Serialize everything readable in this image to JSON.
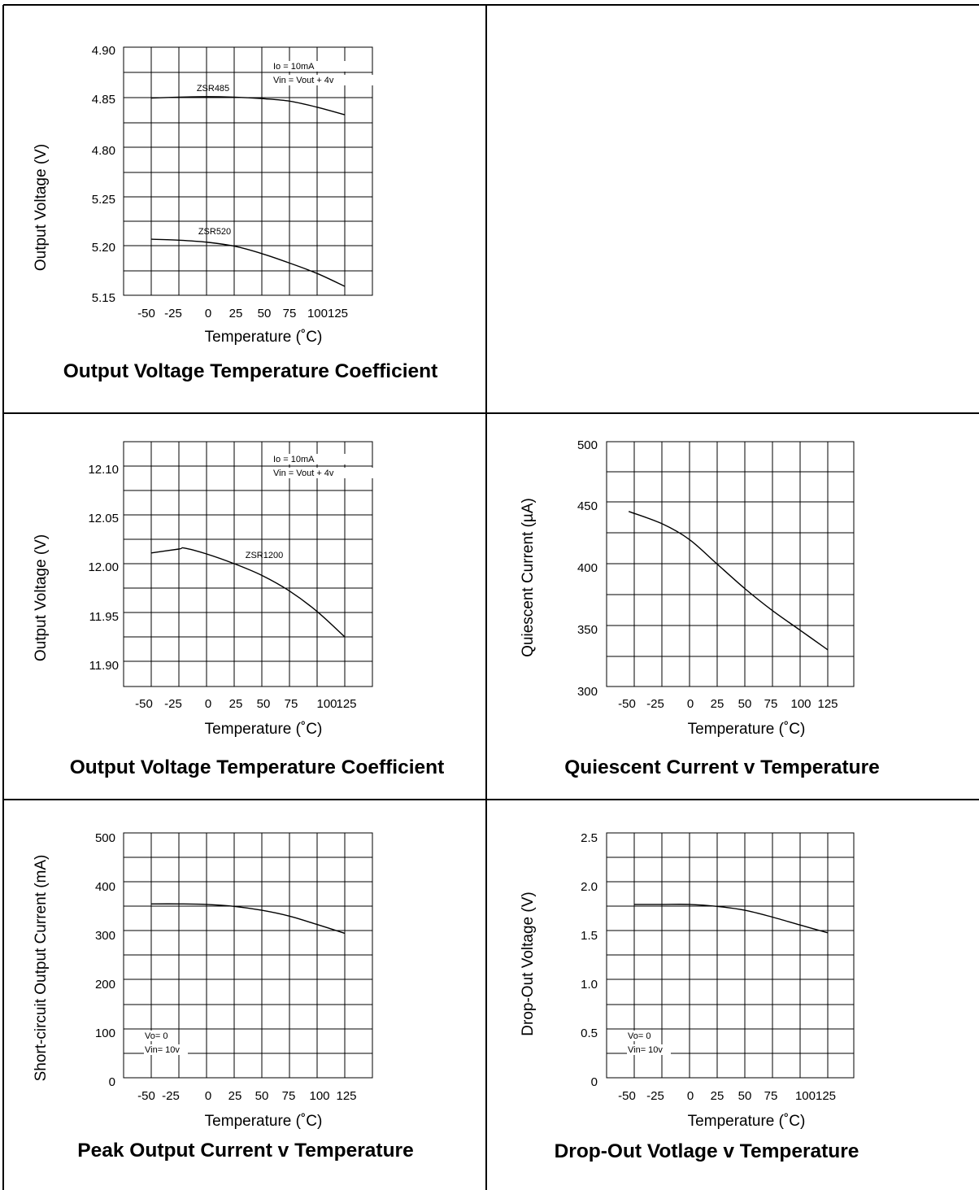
{
  "chart_data": [
    {
      "type": "line",
      "title": "Output Voltage Temperature Coefficient",
      "xlabel": "Temperature (˚C)",
      "ylabel": "Output Voltage (V)",
      "x_ticks": [
        "-50",
        "-25",
        "0",
        "25",
        "50",
        "75",
        "100125"
      ],
      "y_ticks": [
        "4.90",
        "4.85",
        "4.80",
        "5.25",
        "5.20",
        "5.15"
      ],
      "notes": [
        "Io = 10mA",
        "Vin = Vout + 4v"
      ],
      "grid": true,
      "series": [
        {
          "name": "ZSR485",
          "x": [
            -50,
            -25,
            0,
            25,
            50,
            75,
            100,
            125
          ],
          "y": [
            4.8495,
            4.8505,
            4.851,
            4.8505,
            4.849,
            4.8465,
            4.8405,
            4.833
          ]
        },
        {
          "name": "ZSR520",
          "x": [
            -50,
            -25,
            0,
            25,
            50,
            75,
            100,
            125
          ],
          "y": [
            5.2065,
            5.2055,
            5.2035,
            5.1995,
            5.192,
            5.1825,
            5.172,
            5.159
          ]
        }
      ]
    },
    {
      "type": "line",
      "title": "Output Voltage Temperature Coefficient",
      "xlabel": "Temperature (˚C)",
      "ylabel": "Output Voltage (V)",
      "x_ticks": [
        "-50",
        "-25",
        "0",
        "25",
        "50",
        "75",
        "100",
        "125"
      ],
      "y_ticks": [
        "12.10",
        "12.05",
        "12.00",
        "11.95",
        "11.90"
      ],
      "ylim": [
        11.875,
        12.125
      ],
      "notes": [
        "Io = 10mA",
        "Vin = Vout + 4v"
      ],
      "grid": true,
      "series": [
        {
          "name": "ZSR1200",
          "x": [
            -50,
            -25,
            -20,
            0,
            25,
            50,
            75,
            100,
            125
          ],
          "y": [
            12.011,
            12.015,
            12.016,
            12.01,
            12.0,
            11.988,
            11.972,
            11.951,
            11.925
          ]
        }
      ]
    },
    {
      "type": "line",
      "title": "Quiescent Current v Temperature",
      "xlabel": "Temperature (˚C)",
      "ylabel": "Quiescent Current (µA)",
      "x_ticks": [
        "-50",
        "-25",
        "0",
        "25",
        "50",
        "75",
        "100",
        "125"
      ],
      "y_ticks": [
        "500",
        "450",
        "400",
        "350",
        "300"
      ],
      "ylim": [
        300,
        500
      ],
      "grid": true,
      "series": [
        {
          "x": [
            -55,
            -25,
            0,
            25,
            50,
            75,
            100,
            125
          ],
          "y": [
            443,
            433,
            420,
            400,
            380,
            362,
            346,
            330
          ]
        }
      ]
    },
    {
      "type": "line",
      "title": "Peak Output Current v Temperature",
      "xlabel": "Temperature (˚C)",
      "ylabel": "Short-circuit Output Current (mA)",
      "x_ticks": [
        "-50",
        "-25",
        "0",
        "25",
        "50",
        "75",
        "100",
        "125"
      ],
      "y_ticks": [
        "500",
        "400",
        "300",
        "200",
        "100",
        "0"
      ],
      "ylim": [
        0,
        500
      ],
      "notes": [
        "Vo= 0",
        "Vin= 10v"
      ],
      "grid": true,
      "series": [
        {
          "x": [
            -50,
            -25,
            0,
            25,
            50,
            75,
            100,
            125
          ],
          "y": [
            355,
            355,
            354,
            350,
            342,
            330,
            313,
            295
          ]
        }
      ]
    },
    {
      "type": "line",
      "title": "Drop-Out Votlage v Temperature",
      "xlabel": "Temperature (˚C)",
      "ylabel": "Drop-Out Voltage (V)",
      "x_ticks": [
        "-50",
        "-25",
        "0",
        "25",
        "50",
        "75",
        "100125"
      ],
      "y_ticks": [
        "2.5",
        "2.0",
        "1.5",
        "1.0",
        "0.5",
        "0"
      ],
      "ylim": [
        0,
        2.5
      ],
      "notes": [
        "Vo= 0",
        "Vin= 10v"
      ],
      "grid": true,
      "series": [
        {
          "x": [
            -50,
            -25,
            0,
            25,
            50,
            75,
            100,
            125
          ],
          "y": [
            1.77,
            1.77,
            1.77,
            1.75,
            1.71,
            1.64,
            1.56,
            1.48
          ]
        }
      ]
    }
  ]
}
